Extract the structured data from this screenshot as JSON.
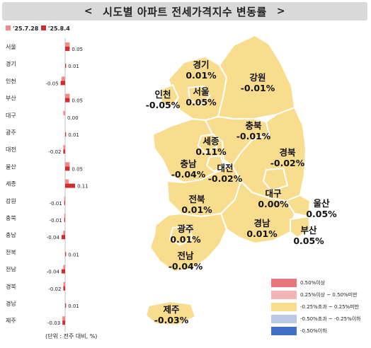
{
  "title": "시도별 아파트 전세가격지수 변동률",
  "title_left_glyph": "<",
  "title_right_glyph": ">",
  "unit_note": "(단위 : 전주 대비, %)",
  "colors": {
    "prev_week": "#f08a8a",
    "this_week": "#cc2f2f",
    "map_region": "#f9dd8f",
    "map_border": "#ffffff",
    "bg": "#ffffff"
  },
  "chart_data": {
    "type": "bar",
    "orientation": "horizontal",
    "legend_placement": "top-left",
    "grid": false,
    "xlim": [
      -0.06,
      0.12
    ],
    "categories": [
      "서울",
      "경기",
      "인천",
      "부산",
      "대구",
      "광주",
      "대전",
      "울산",
      "세종",
      "강원",
      "충북",
      "충남",
      "전북",
      "전남",
      "경북",
      "경남",
      "제주"
    ],
    "series": [
      {
        "name": "'25.7.28",
        "values": [
          0.05,
          0.0,
          -0.04,
          0.05,
          -0.02,
          0.0,
          -0.02,
          0.05,
          0.04,
          -0.01,
          -0.01,
          -0.02,
          0.0,
          -0.02,
          -0.02,
          0.0,
          -0.03
        ]
      },
      {
        "name": "'25.8.4",
        "values": [
          0.05,
          0.01,
          -0.05,
          0.05,
          0.0,
          0.01,
          -0.02,
          0.05,
          0.11,
          -0.01,
          -0.01,
          -0.04,
          0.01,
          -0.04,
          -0.02,
          0.01,
          -0.03
        ]
      }
    ],
    "data_labels": [
      "0.05",
      "0.01",
      "-0.05",
      "0.05",
      "0.00",
      "0.01",
      "-0.02",
      "0.05",
      "0.11",
      "-0.01",
      "-0.01",
      "-0.04",
      "0.01",
      "-0.04",
      "-0.02",
      "0.01",
      "-0.03"
    ]
  },
  "map": {
    "regions": [
      {
        "name": "경기",
        "value": "0.01%"
      },
      {
        "name": "강원",
        "value": "-0.01%"
      },
      {
        "name": "인천",
        "value": "-0.05%"
      },
      {
        "name": "서울",
        "value": "0.05%"
      },
      {
        "name": "충북",
        "value": "-0.01%"
      },
      {
        "name": "세종",
        "value": "0.11%"
      },
      {
        "name": "경북",
        "value": "-0.02%"
      },
      {
        "name": "충남",
        "value": "-0.04%"
      },
      {
        "name": "대전",
        "value": "-0.02%"
      },
      {
        "name": "대구",
        "value": "0.00%"
      },
      {
        "name": "전북",
        "value": "0.01%"
      },
      {
        "name": "울산",
        "value": "0.05%"
      },
      {
        "name": "광주",
        "value": "0.01%"
      },
      {
        "name": "경남",
        "value": "0.01%"
      },
      {
        "name": "부산",
        "value": "0.05%"
      },
      {
        "name": "전남",
        "value": "-0.04%"
      },
      {
        "name": "제주",
        "value": "-0.03%"
      }
    ]
  },
  "legend": [
    {
      "label": "0.50%이상",
      "color": "#e8767a"
    },
    {
      "label": "0.25%이상 ~ 0.50%미만",
      "color": "#f4b3b5"
    },
    {
      "label": "-0.25%초과 ~ 0.25%미만",
      "color": "#f9dd8f"
    },
    {
      "label": "-0.50%초과 ~ -0.25%이하",
      "color": "#b9c9e6"
    },
    {
      "label": "-0.50%이하",
      "color": "#3f6fc6"
    }
  ]
}
